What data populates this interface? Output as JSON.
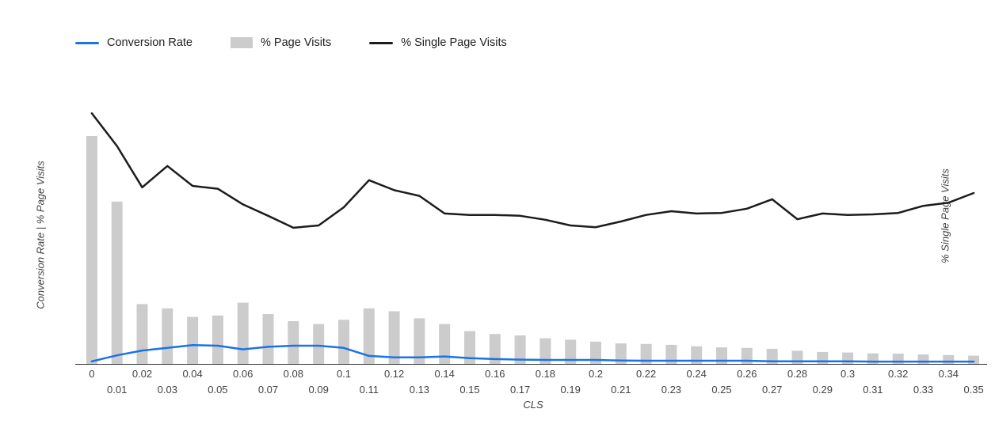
{
  "legend": {
    "items": [
      {
        "label": "Conversion Rate",
        "type": "line",
        "color": "#1a73e8"
      },
      {
        "label": "% Page Visits",
        "type": "bar",
        "color": "#cccccc"
      },
      {
        "label": "% Single Page Visits",
        "type": "line",
        "color": "#1c1c1c"
      }
    ]
  },
  "axes": {
    "left_title": "Conversion Rate | % Page Visits",
    "right_title": "% Single Page Visits",
    "x_title": "CLS"
  },
  "chart_data": {
    "type": "combo",
    "title": "",
    "xlabel": "CLS",
    "ylabel_left": "Conversion Rate | % Page Visits",
    "ylabel_right": "% Single Page Visits",
    "ylim": [
      0,
      100
    ],
    "grid": false,
    "legend_position": "top-left",
    "categories": [
      "0",
      "0.01",
      "0.02",
      "0.03",
      "0.04",
      "0.05",
      "0.06",
      "0.07",
      "0.08",
      "0.09",
      "0.1",
      "0.11",
      "0.12",
      "0.13",
      "0.14",
      "0.15",
      "0.16",
      "0.17",
      "0.18",
      "0.19",
      "0.2",
      "0.21",
      "0.22",
      "0.23",
      "0.24",
      "0.25",
      "0.26",
      "0.27",
      "0.28",
      "0.29",
      "0.3",
      "0.31",
      "0.32",
      "0.33",
      "0.34",
      "0.35"
    ],
    "series": [
      {
        "name": "Conversion Rate",
        "type": "line",
        "axis": "left",
        "color": "#1a73e8",
        "values": [
          0.9,
          3.0,
          4.7,
          5.6,
          6.6,
          6.4,
          5.1,
          6.0,
          6.4,
          6.4,
          5.6,
          2.8,
          2.3,
          2.3,
          2.6,
          2.0,
          1.7,
          1.5,
          1.4,
          1.4,
          1.4,
          1.2,
          1.1,
          1.1,
          1.1,
          1.1,
          1.1,
          0.9,
          0.9,
          0.9,
          0.9,
          0.8,
          0.8,
          0.8,
          0.8,
          0.8
        ]
      },
      {
        "name": "% Page Visits",
        "type": "bar",
        "axis": "left",
        "color": "#cccccc",
        "values": [
          80,
          57,
          21,
          19.5,
          16.5,
          17,
          21.5,
          17.5,
          15,
          14,
          15.5,
          19.5,
          18.5,
          16,
          14,
          11.5,
          10.5,
          10,
          9,
          8.5,
          7.8,
          7.2,
          7,
          6.7,
          6.2,
          5.8,
          5.6,
          5.3,
          4.6,
          4.2,
          4,
          3.7,
          3.6,
          3.3,
          3.1,
          2.9
        ]
      },
      {
        "name": "% Single Page Visits",
        "type": "line",
        "axis": "right",
        "color": "#1c1c1c",
        "values": [
          88,
          76.5,
          62,
          69.5,
          62.5,
          61.5,
          56,
          52,
          47.8,
          48.6,
          55,
          64.5,
          61,
          59,
          52.8,
          52.3,
          52.3,
          52,
          50.6,
          48.6,
          48,
          50,
          52.3,
          53.6,
          52.8,
          53,
          54.5,
          57.8,
          50.8,
          52.8,
          52.3,
          52.5,
          53,
          55.5,
          56.6,
          60
        ]
      }
    ]
  }
}
